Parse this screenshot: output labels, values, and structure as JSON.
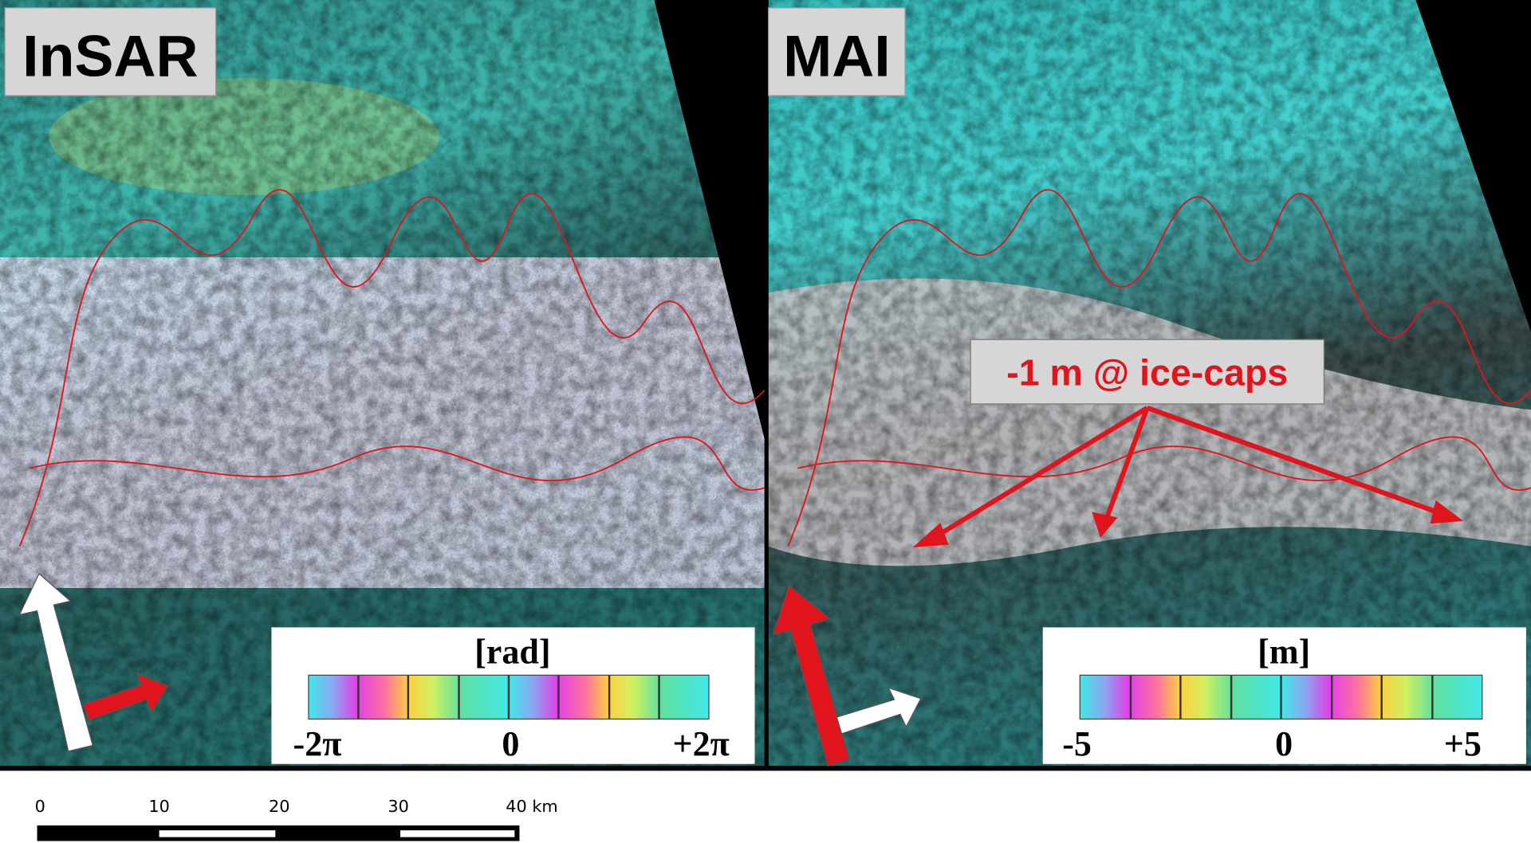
{
  "panels": [
    {
      "label": "InSAR",
      "colorbar": {
        "unit": "[rad]",
        "min_label": "-2π",
        "mid_label": "0",
        "max_label": "+2π"
      }
    },
    {
      "label": "MAI",
      "colorbar": {
        "unit": "[m]",
        "min_label": "-5",
        "mid_label": "0",
        "max_label": "+5"
      },
      "annotation": "-1 m @ ice-caps"
    }
  ],
  "scale_bar": {
    "labels": [
      "0",
      "10",
      "20",
      "30",
      "40 km"
    ]
  }
}
